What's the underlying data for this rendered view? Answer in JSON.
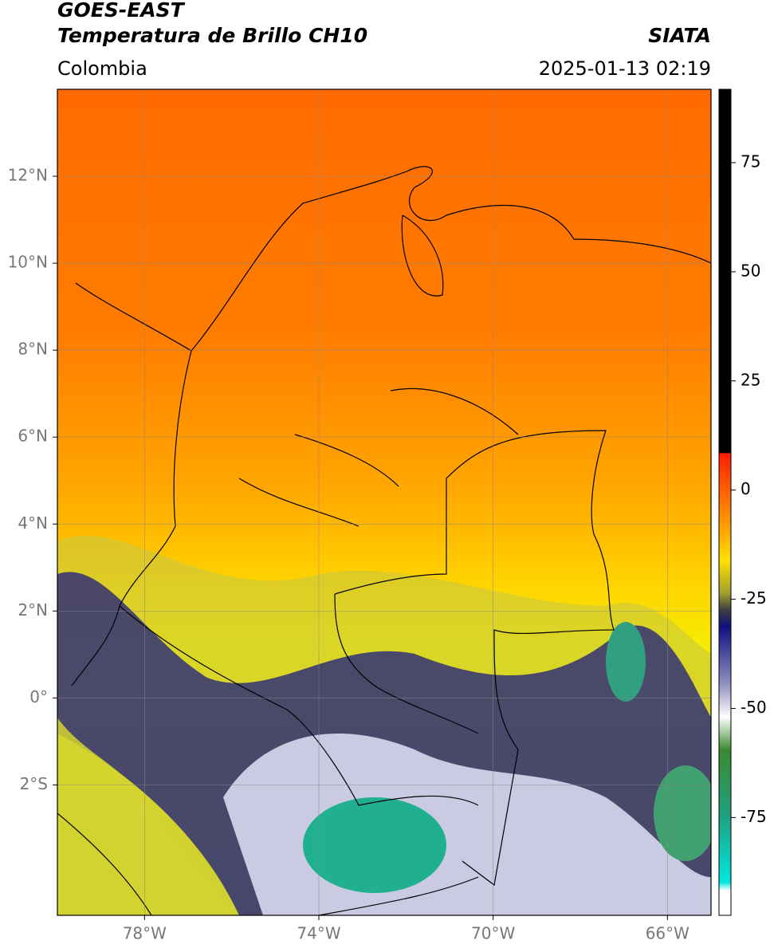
{
  "header": {
    "satellite": "GOES-EAST",
    "product": "Temperatura de Brillo CH10",
    "region": "Colombia",
    "source": "SIATA",
    "datetime": "2025-01-13 02:19"
  },
  "map": {
    "xlim": [
      -80,
      -65
    ],
    "ylim": [
      -5,
      14
    ],
    "xticks": [
      {
        "value": -78,
        "label": "78°W"
      },
      {
        "value": -74,
        "label": "74°W"
      },
      {
        "value": -70,
        "label": "70°W"
      },
      {
        "value": -66,
        "label": "66°W"
      }
    ],
    "yticks": [
      {
        "value": 12,
        "label": "12°N"
      },
      {
        "value": 10,
        "label": "10°N"
      },
      {
        "value": 8,
        "label": "8°N"
      },
      {
        "value": 6,
        "label": "6°N"
      },
      {
        "value": 4,
        "label": "4°N"
      },
      {
        "value": 2,
        "label": "2°N"
      },
      {
        "value": 0,
        "label": "0°"
      },
      {
        "value": -2,
        "label": "2°S"
      }
    ],
    "grid": true
  },
  "colorbar": {
    "ylim": [
      -97.4,
      91.8
    ],
    "yticks": [
      75,
      50,
      25,
      0,
      -25,
      -50,
      -75
    ]
  }
}
